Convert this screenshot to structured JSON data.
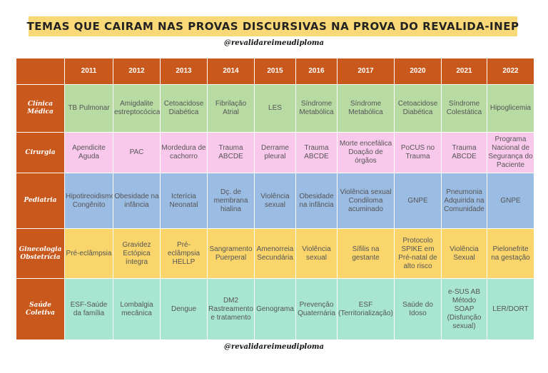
{
  "title": "TEMAS QUE CAIRAM NAS PROVAS DISCURSIVAS NA PROVA DO REVALIDA-INEP",
  "handle_top": "@revalidareimeudiploma",
  "handle_bottom": "@revalidareimeudiploma",
  "years": [
    "2011",
    "2012",
    "2013",
    "2014",
    "2015",
    "2016",
    "2017",
    "2020",
    "2021",
    "2022"
  ],
  "rows": [
    {
      "label": "Clínica Médica",
      "cells": [
        "TB Pulmonar",
        "Amigdalite estreptocócica",
        "Cetoacidose Diabética",
        "Fibrilação Atrial",
        "LES",
        "Síndrome Metabólica",
        "Síndrome Metabólica",
        "Cetoacidose Diabética",
        "Síndrome Colestática",
        "Hipoglicemia"
      ]
    },
    {
      "label": "Cirurgia",
      "cells": [
        "Apendicite Aguda",
        "PAC",
        "Mordedura de cachorro",
        "Trauma ABCDE",
        "Derrame pleural",
        "Trauma ABCDE",
        "Morte encefálica Doação de órgãos",
        "PoCUS no Trauma",
        "Trauma ABCDE",
        "Programa Nacional de Segurança do Paciente"
      ]
    },
    {
      "label": "Pediatria",
      "cells": [
        "Hipotireoidismo Congênito",
        "Obesidade na infância",
        "Icterícia Neonatal",
        "Dç. de membrana hialina",
        "Violência sexual",
        "Obesidade na infância",
        "Violência sexual Condiloma acuminado",
        "GNPE",
        "Pneumonia Adquirida na Comunidade",
        "GNPE"
      ]
    },
    {
      "label": "Ginecologia Obstetrícia",
      "cells": [
        "Pré-eclâmpsia",
        "Gravidez Ectópica íntegra",
        "Pré-eclâmpsia HELLP",
        "Sangramento Puerperal",
        "Amenorreia Secundária",
        "Violência sexual",
        "Sífilis na gestante",
        "Protocolo SPIKE em Pré-natal de alto risco",
        "Violência Sexual",
        "Pielonefrite na gestação"
      ]
    },
    {
      "label": "Saúde Coletiva",
      "cells": [
        "ESF-Saúde da família",
        "Lombalgia mecânica",
        "Dengue",
        "DM2 Rastreamento e tratamento",
        "Genograma",
        "Prevenção Quaternária",
        "ESF (Territorialização)",
        "Saúde do Idoso",
        "e-SUS AB Método SOAP (Disfunção sexual)",
        "LER/DORT"
      ]
    }
  ]
}
